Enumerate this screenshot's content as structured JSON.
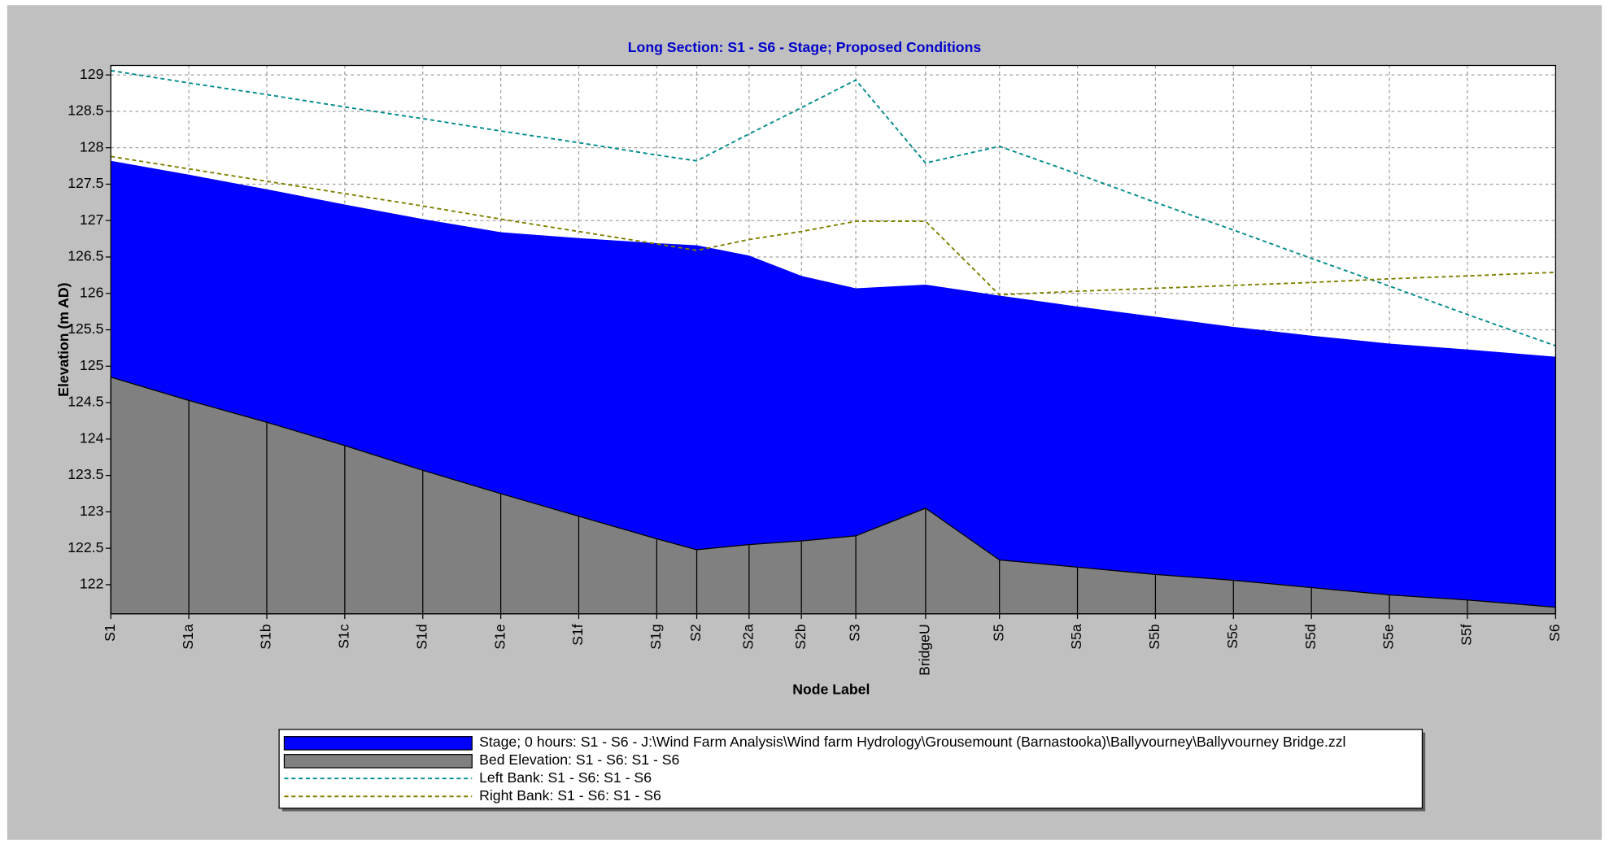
{
  "chart_data": {
    "type": "area",
    "title": "Long Section: S1 - S6 - Stage; Proposed Conditions",
    "x_label": "Node Label",
    "y_label": "Elevation (m AD)",
    "categories": [
      "S1",
      "S1a",
      "S1b",
      "S1c",
      "S1d",
      "S1e",
      "S1f",
      "S1g",
      "S2",
      "S2a",
      "S2b",
      "S3",
      "BridgeU",
      "S5",
      "S5a",
      "S5b",
      "S5c",
      "S5d",
      "S5e",
      "S5f",
      "S6"
    ],
    "ylim": [
      121.6,
      129.13
    ],
    "yticks": [
      122,
      122.5,
      123,
      123.5,
      124,
      124.5,
      125,
      125.5,
      126,
      126.5,
      127,
      127.5,
      128,
      128.5,
      129
    ],
    "grid": true,
    "legend": "bottom",
    "series": [
      {
        "name": "Stage; 0 hours: S1 - S6 - J:\\Wind Farm Analysis\\Wind farm Hydrology\\Grousemount (Barnastooka)\\Ballyvourney\\Ballyvourney Bridge.zzl",
        "color": "#0000ff",
        "style": "area",
        "values": [
          127.82,
          127.63,
          127.43,
          127.22,
          127.02,
          126.84,
          126.76,
          126.69,
          126.66,
          126.52,
          126.24,
          126.07,
          126.12,
          125.97,
          125.82,
          125.68,
          125.54,
          125.42,
          125.31,
          125.23,
          125.13
        ]
      },
      {
        "name": "Bed Elevation: S1 - S6: S1 - S6",
        "color": "#808080",
        "style": "area",
        "values": [
          124.85,
          124.53,
          124.23,
          123.91,
          123.57,
          123.25,
          122.94,
          122.63,
          122.48,
          122.55,
          122.6,
          122.67,
          123.05,
          122.34,
          122.24,
          122.14,
          122.06,
          121.96,
          121.86,
          121.79,
          121.69
        ]
      },
      {
        "name": "Left Bank: S1 - S6: S1 - S6",
        "color": "#008b8b",
        "style": "dashed",
        "values": [
          129.06,
          128.89,
          128.73,
          128.56,
          128.4,
          128.23,
          128.07,
          127.9,
          127.82,
          128.19,
          128.55,
          128.93,
          127.79,
          128.02,
          127.64,
          127.25,
          126.87,
          126.48,
          126.1,
          125.71,
          125.28
        ]
      },
      {
        "name": "Right Bank: S1 - S6: S1 - S6",
        "color": "#808000",
        "style": "dashed",
        "values": [
          127.88,
          127.71,
          127.54,
          127.37,
          127.2,
          127.02,
          126.85,
          126.68,
          126.59,
          126.74,
          126.85,
          126.99,
          126.99,
          125.98,
          126.03,
          126.07,
          126.11,
          126.15,
          126.2,
          126.24,
          126.29
        ]
      }
    ]
  }
}
